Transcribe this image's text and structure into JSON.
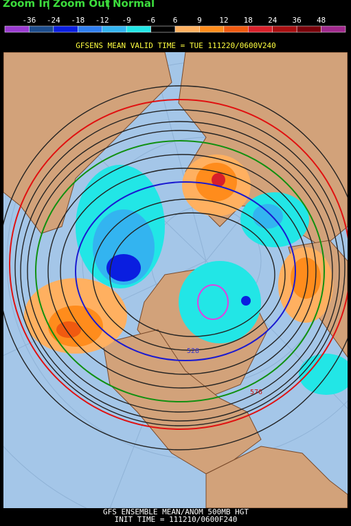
{
  "nav": {
    "zoom_in": "Zoom In",
    "zoom_out": "Zoom Out",
    "normal": "Normal",
    "separator": "|"
  },
  "legend": {
    "labels": [
      "-36",
      "-24",
      "-18",
      "-12",
      "-9",
      "-6",
      "6",
      "9",
      "12",
      "18",
      "24",
      "36",
      "48"
    ],
    "colors": [
      "#9a3ad0",
      "#1c4c8c",
      "#0a1ee0",
      "#2f7ef0",
      "#33b4f0",
      "#22e6e6",
      "#000000",
      "#ffb060",
      "#ff8c1c",
      "#f05a10",
      "#d8202a",
      "#a80e10",
      "#78000a",
      "#a0288c"
    ]
  },
  "title": "GFSENS MEAN VALID TIME = TUE 111220/0600V240",
  "contour_labels": [
    "528",
    "576"
  ],
  "footer": {
    "line1": "GFS ENSEMBLE MEAN/ANOM 500MB HGT",
    "line2": "INIT TIME = 111210/0600F240"
  }
}
